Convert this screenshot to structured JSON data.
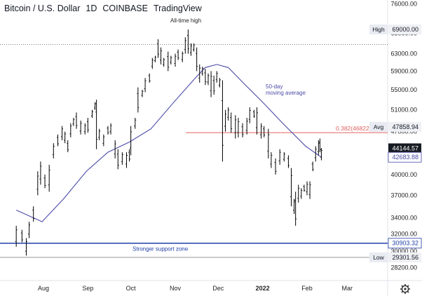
{
  "header": {
    "title": "Bitcoin / U.S. Dollar",
    "interval": "1D",
    "exchange": "COINBASE",
    "brand": "TradingView"
  },
  "colors": {
    "candle": "#000000",
    "ma": "#4a4aa8",
    "fib": "#e06060",
    "support": "#1f3fa8",
    "dotted": "#777777",
    "axis_text": "#222222",
    "tag_bg": "#eef0f4",
    "tag_dark_bg": "#161a22"
  },
  "annotations": {
    "ath": "All-time high",
    "ma_line1": "50-day",
    "ma_line2": "moving average",
    "support": "Stronger support zone",
    "fib": "0.382(46822"
  },
  "chart_data": {
    "type": "ohlc",
    "title": "Bitcoin / U.S. Dollar · 1D · COINBASE",
    "x_axis": {
      "ticks": [
        {
          "date": "2021-08-01",
          "label": "Aug"
        },
        {
          "date": "2021-09-01",
          "label": "Sep"
        },
        {
          "date": "2021-10-01",
          "label": "Oct"
        },
        {
          "date": "2021-11-01",
          "label": "Nov"
        },
        {
          "date": "2021-12-01",
          "label": "Dec"
        },
        {
          "date": "2022-01-01",
          "label": "2022"
        },
        {
          "date": "2022-02-01",
          "label": "Feb"
        },
        {
          "date": "2022-03-01",
          "label": "Mar"
        }
      ]
    },
    "y_axis": {
      "ticks": [
        28200,
        30000,
        32000,
        34000,
        37000,
        40000,
        44000,
        47000,
        51000,
        55000,
        59000,
        63000,
        68000,
        76000
      ],
      "range": [
        27000,
        76000
      ],
      "scale": "log"
    },
    "price_tags": [
      {
        "label": "High",
        "value": "69000.00",
        "price": 69000,
        "style": "light"
      },
      {
        "label": "Avg",
        "value": "47858.94",
        "price": 47858.94,
        "style": "light"
      },
      {
        "label": "",
        "value": "44144.57",
        "price": 44144.57,
        "style": "dark"
      },
      {
        "label": "",
        "value": "42683.88",
        "price": 42683.88,
        "style": "ma"
      },
      {
        "label": "",
        "value": "30903.32",
        "price": 30903.32,
        "style": "support"
      },
      {
        "label": "Low",
        "value": "29301.56",
        "price": 29301.56,
        "style": "light"
      }
    ],
    "lines": {
      "high_dotted": 65200,
      "fib_level": 46822,
      "support": 30903.32,
      "low": 29301.56
    },
    "series": [
      {
        "name": "Price",
        "kind": "ohlc",
        "points": [
          [
            "2021-07-13",
            33000,
            30500
          ],
          [
            "2021-07-17",
            32500,
            31000
          ],
          [
            "2021-07-20",
            31500,
            29500
          ],
          [
            "2021-07-22",
            33500,
            31500
          ],
          [
            "2021-07-25",
            35500,
            33500
          ],
          [
            "2021-07-28",
            40500,
            37000
          ],
          [
            "2021-07-30",
            42000,
            38500
          ],
          [
            "2021-08-02",
            40000,
            38000
          ],
          [
            "2021-08-05",
            41500,
            37500
          ],
          [
            "2021-08-08",
            45000,
            42500
          ],
          [
            "2021-08-11",
            46500,
            44500
          ],
          [
            "2021-08-14",
            48000,
            45500
          ],
          [
            "2021-08-16",
            47000,
            45000
          ],
          [
            "2021-08-18",
            45500,
            43500
          ],
          [
            "2021-08-20",
            48500,
            46000
          ],
          [
            "2021-08-22",
            49500,
            48000
          ],
          [
            "2021-08-24",
            50500,
            47500
          ],
          [
            "2021-08-27",
            49000,
            46500
          ],
          [
            "2021-08-30",
            48500,
            46500
          ],
          [
            "2021-09-01",
            49500,
            46800
          ],
          [
            "2021-09-04",
            51000,
            49500
          ],
          [
            "2021-09-06",
            52500,
            51000
          ],
          [
            "2021-09-07",
            53000,
            44000
          ],
          [
            "2021-09-09",
            47500,
            45500
          ],
          [
            "2021-09-12",
            46500,
            44500
          ],
          [
            "2021-09-15",
            48000,
            46500
          ],
          [
            "2021-09-17",
            48500,
            46500
          ],
          [
            "2021-09-20",
            45500,
            42500
          ],
          [
            "2021-09-22",
            44000,
            40800
          ],
          [
            "2021-09-25",
            43500,
            41500
          ],
          [
            "2021-09-28",
            43500,
            41000
          ],
          [
            "2021-09-30",
            44000,
            42000
          ],
          [
            "2021-10-01",
            48000,
            43000
          ],
          [
            "2021-10-04",
            49500,
            47500
          ],
          [
            "2021-10-06",
            55500,
            50500
          ],
          [
            "2021-10-09",
            55000,
            53500
          ],
          [
            "2021-10-11",
            57500,
            54500
          ],
          [
            "2021-10-14",
            58500,
            56500
          ],
          [
            "2021-10-16",
            62000,
            59500
          ],
          [
            "2021-10-18",
            62500,
            61000
          ],
          [
            "2021-10-20",
            66500,
            62000
          ],
          [
            "2021-10-22",
            64500,
            60500
          ],
          [
            "2021-10-24",
            62000,
            60000
          ],
          [
            "2021-10-27",
            63500,
            59000
          ],
          [
            "2021-10-29",
            62500,
            60500
          ],
          [
            "2021-11-01",
            63000,
            60000
          ],
          [
            "2021-11-03",
            64000,
            61500
          ],
          [
            "2021-11-06",
            63500,
            61000
          ],
          [
            "2021-11-08",
            67000,
            63000
          ],
          [
            "2021-11-10",
            69000,
            63000
          ],
          [
            "2021-11-12",
            65500,
            62500
          ],
          [
            "2021-11-14",
            65500,
            63500
          ],
          [
            "2021-11-16",
            64500,
            59000
          ],
          [
            "2021-11-18",
            60500,
            56500
          ],
          [
            "2021-11-20",
            60000,
            58000
          ],
          [
            "2021-11-22",
            59500,
            56000
          ],
          [
            "2021-11-24",
            58500,
            56000
          ],
          [
            "2021-11-26",
            59000,
            53500
          ],
          [
            "2021-11-28",
            58000,
            54000
          ],
          [
            "2021-11-30",
            59000,
            56500
          ],
          [
            "2021-12-02",
            57500,
            55500
          ],
          [
            "2021-12-04",
            57000,
            42000
          ],
          [
            "2021-12-06",
            51000,
            47000
          ],
          [
            "2021-12-08",
            51500,
            49000
          ],
          [
            "2021-12-10",
            50500,
            46800
          ],
          [
            "2021-12-13",
            50000,
            45800
          ],
          [
            "2021-12-15",
            49500,
            46000
          ],
          [
            "2021-12-18",
            48500,
            46000
          ],
          [
            "2021-12-21",
            49500,
            46500
          ],
          [
            "2021-12-23",
            51500,
            48500
          ],
          [
            "2021-12-26",
            51000,
            49500
          ],
          [
            "2021-12-28",
            51500,
            46500
          ],
          [
            "2021-12-31",
            48500,
            45800
          ],
          [
            "2022-01-02",
            48000,
            46000
          ],
          [
            "2022-01-05",
            47500,
            42500
          ],
          [
            "2022-01-07",
            43500,
            41000
          ],
          [
            "2022-01-10",
            42500,
            40000
          ],
          [
            "2022-01-13",
            44000,
            41500
          ],
          [
            "2022-01-16",
            43500,
            42000
          ],
          [
            "2022-01-19",
            43000,
            41000
          ],
          [
            "2022-01-21",
            41000,
            35500
          ],
          [
            "2022-01-23",
            36500,
            34500
          ],
          [
            "2022-01-24",
            37500,
            33000
          ],
          [
            "2022-01-26",
            38500,
            36000
          ],
          [
            "2022-01-28",
            38000,
            36500
          ],
          [
            "2022-01-30",
            38500,
            37500
          ],
          [
            "2022-02-01",
            39000,
            37000
          ],
          [
            "2022-02-03",
            39000,
            36500
          ],
          [
            "2022-02-05",
            42000,
            40500
          ],
          [
            "2022-02-07",
            44500,
            42000
          ],
          [
            "2022-02-09",
            45500,
            43000
          ],
          [
            "2022-02-10",
            45800,
            43500
          ],
          [
            "2022-02-11",
            44200,
            42200
          ]
        ]
      },
      {
        "name": "50-day moving average",
        "kind": "line",
        "points": [
          [
            "2021-07-13",
            35000
          ],
          [
            "2021-07-31",
            33500
          ],
          [
            "2021-08-15",
            36500
          ],
          [
            "2021-08-31",
            40500
          ],
          [
            "2021-09-15",
            43500
          ],
          [
            "2021-09-30",
            45200
          ],
          [
            "2021-10-15",
            47500
          ],
          [
            "2021-10-31",
            52500
          ],
          [
            "2021-11-15",
            57500
          ],
          [
            "2021-11-22",
            59800
          ],
          [
            "2021-11-30",
            60500
          ],
          [
            "2021-12-08",
            59800
          ],
          [
            "2021-12-20",
            56000
          ],
          [
            "2022-01-01",
            52500
          ],
          [
            "2022-01-15",
            48500
          ],
          [
            "2022-01-31",
            44500
          ],
          [
            "2022-02-11",
            42683.88
          ]
        ]
      }
    ]
  }
}
